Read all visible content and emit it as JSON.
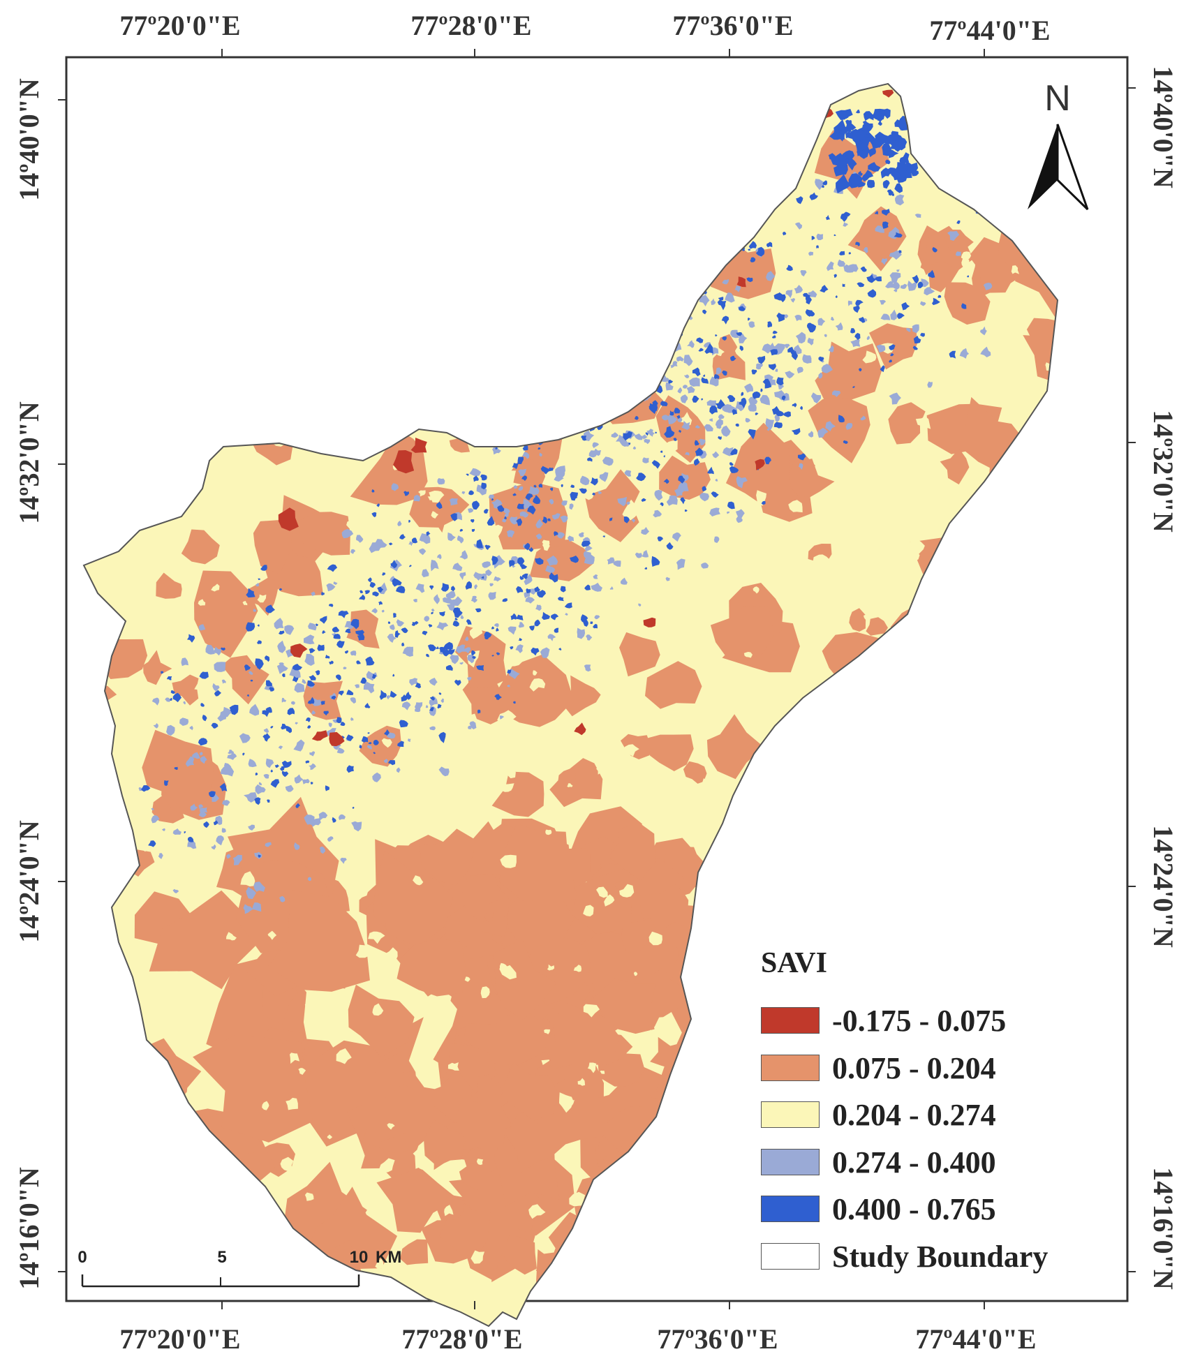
{
  "map": {
    "top_longitudes": [
      "77º20'0\"E",
      "77º28'0\"E",
      "77º36'0\"E",
      "77º44'0\"E"
    ],
    "bottom_longitudes": [
      "77º20'0\"E",
      "77º28'0\"E",
      "77º36'0\"E",
      "77º44'0\"E"
    ],
    "left_latitudes": [
      "14º40'0\"N",
      "14º32'0\"N",
      "14º24'0\"N",
      "14º16'0\"N"
    ],
    "right_latitudes": [
      "14º40'0\"N",
      "14º32'0\"N",
      "14º24'0\"N",
      "14º16'0\"N"
    ],
    "north_label": "N",
    "scale_labels": [
      "0",
      "5",
      "10",
      "KM"
    ]
  },
  "legend": {
    "title": "SAVI",
    "items": [
      {
        "label": "-0.175 - 0.075",
        "color": "#c0392b"
      },
      {
        "label": "0.075 - 0.204",
        "color": "#e5936b"
      },
      {
        "label": "0.204 - 0.274",
        "color": "#fbf6b8"
      },
      {
        "label": "0.274 - 0.400",
        "color": "#9aaad6"
      },
      {
        "label": "0.400 - 0.765",
        "color": "#2f5fd0"
      },
      {
        "label": "Study Boundary",
        "color": "#ffffff"
      }
    ]
  },
  "colors": {
    "frame": "#333333",
    "low": "#c0392b",
    "sparse": "#e5936b",
    "moderate": "#fbf6b8",
    "dense": "#9aaad6",
    "very_dense": "#2f5fd0"
  }
}
